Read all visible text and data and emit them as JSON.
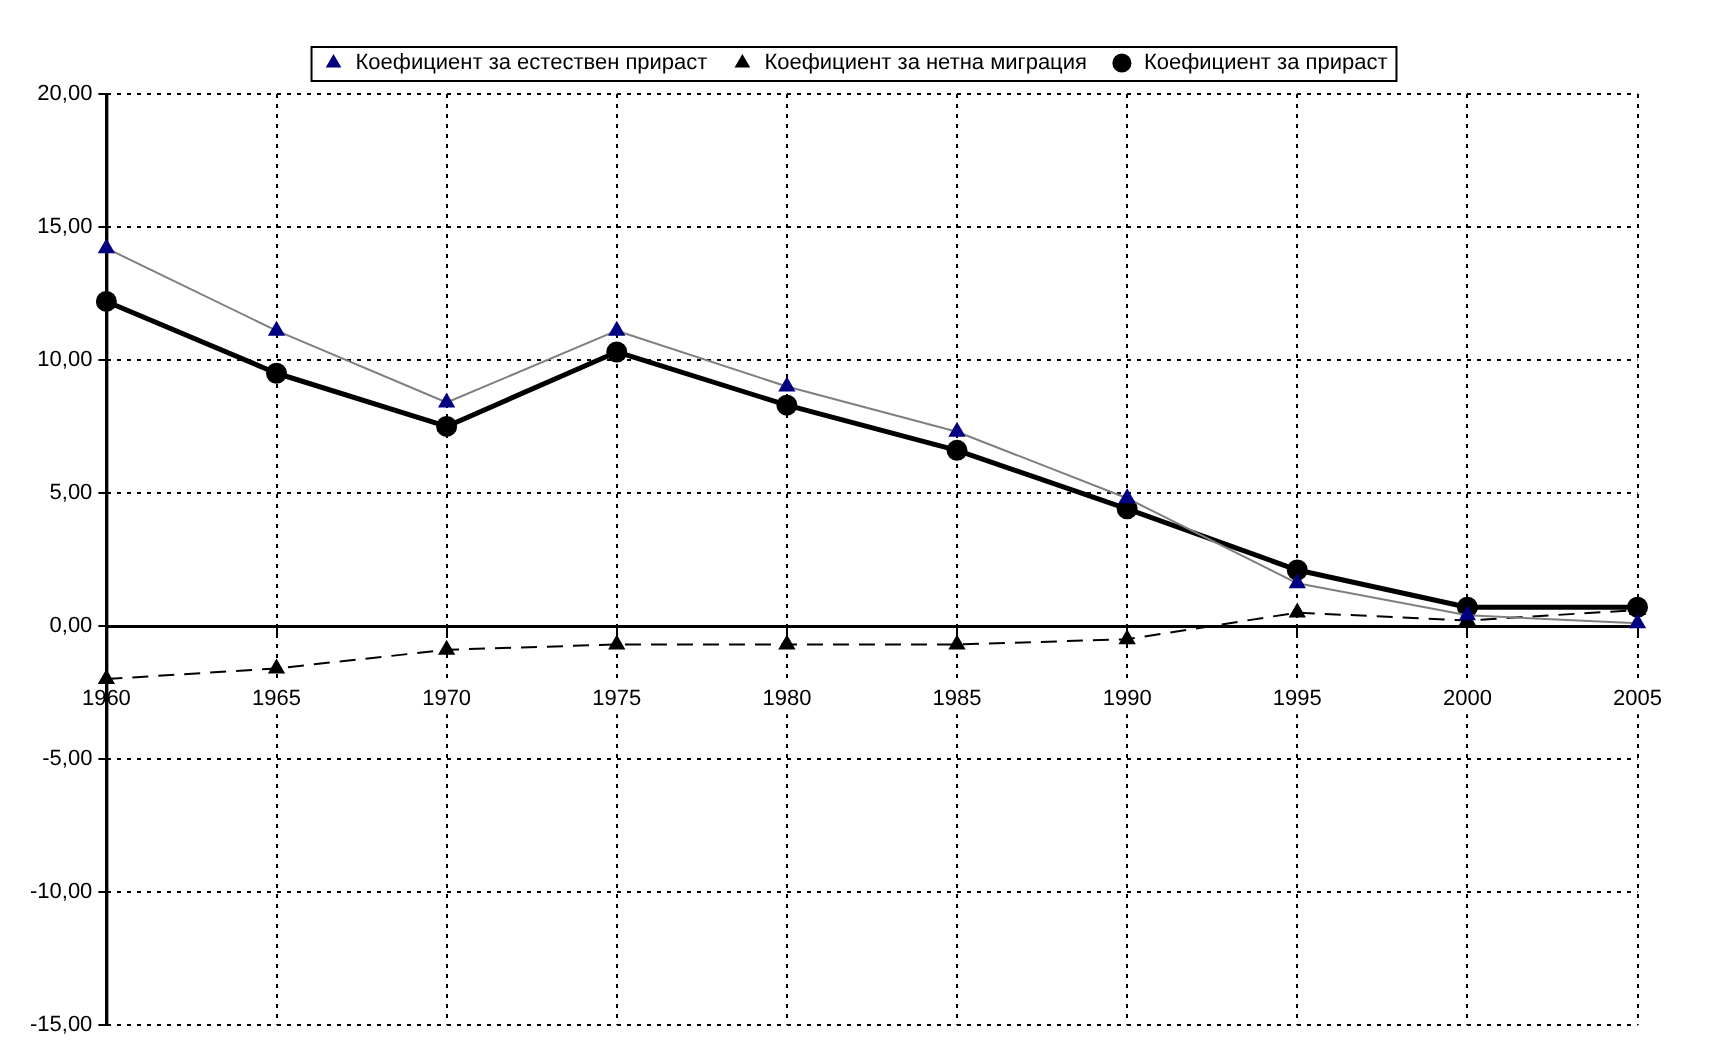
{
  "chart_data": {
    "type": "line",
    "categories": [
      "1960",
      "1965",
      "1970",
      "1975",
      "1980",
      "1985",
      "1990",
      "1995",
      "2000",
      "2005"
    ],
    "series": [
      {
        "name": "Коефициент за естествен прираст",
        "color": "#000080",
        "marker": "triangle",
        "line_style": "solid",
        "values": [
          14.2,
          11.1,
          8.4,
          11.1,
          9.0,
          7.3,
          4.8,
          1.6,
          0.4,
          0.1
        ]
      },
      {
        "name": "Коефициент за нетна миграция",
        "color": "#000000",
        "marker": "triangle",
        "line_style": "dashed",
        "values": [
          -2.0,
          -1.6,
          -0.9,
          -0.7,
          -0.7,
          -0.7,
          -0.5,
          0.5,
          0.2,
          0.6
        ]
      },
      {
        "name": "Коефициент за прираст",
        "color": "#000000",
        "marker": "circle",
        "line_style": "solid",
        "values": [
          12.2,
          9.5,
          7.5,
          10.3,
          8.3,
          6.6,
          4.4,
          2.1,
          0.7,
          0.7
        ]
      }
    ],
    "ylim": [
      -15,
      20
    ],
    "yticks": [
      {
        "value": -15,
        "label": "-15,00"
      },
      {
        "value": -10,
        "label": "-10,00"
      },
      {
        "value": -5,
        "label": "-5,00"
      },
      {
        "value": 0,
        "label": "0,00"
      },
      {
        "value": 5,
        "label": "5,00"
      },
      {
        "value": 10,
        "label": "10,00"
      },
      {
        "value": 15,
        "label": "15,00"
      },
      {
        "value": 20,
        "label": "20,00"
      }
    ],
    "grid": true,
    "legend": "top"
  }
}
